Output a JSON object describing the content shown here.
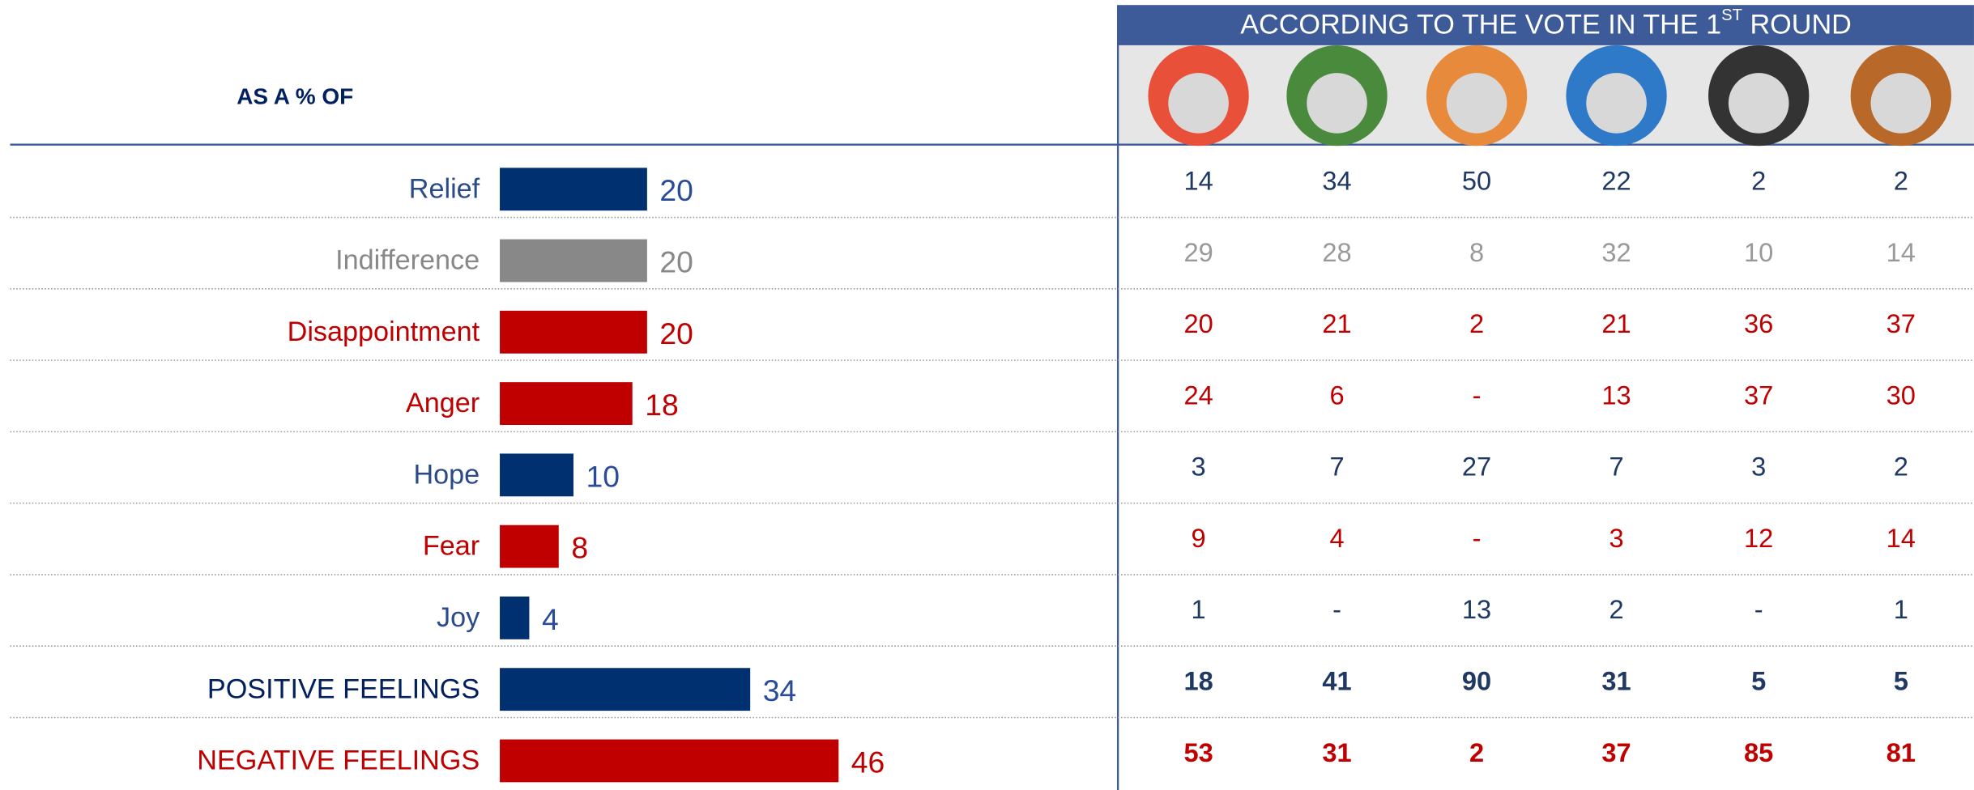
{
  "header": {
    "label": "AS A % OF",
    "title": "ACCORDING TO THE VOTE IN THE 1",
    "title_sup": "ST",
    "title_end": " ROUND"
  },
  "candidate_colors": [
    "#e8503a",
    "#4a8a3c",
    "#e88a3c",
    "#2f7ac8",
    "#333333",
    "#b8692a"
  ],
  "rows": [
    {
      "label": "Relief",
      "value": 20,
      "color": "#003070",
      "label_color": "#2a4a8a",
      "text_color": "#1f3864",
      "cols": [
        14,
        34,
        50,
        22,
        2,
        2
      ]
    },
    {
      "label": "Indifference",
      "value": 20,
      "color": "#888888",
      "label_color": "#888888",
      "text_color": "#999999",
      "cols": [
        29,
        28,
        8,
        32,
        10,
        14
      ]
    },
    {
      "label": "Disappointment",
      "value": 20,
      "color": "#c00000",
      "label_color": "#c00000",
      "text_color": "#c00000",
      "cols": [
        20,
        21,
        2,
        21,
        36,
        37
      ]
    },
    {
      "label": "Anger",
      "value": 18,
      "color": "#c00000",
      "label_color": "#c00000",
      "text_color": "#c00000",
      "cols": [
        24,
        6,
        "-",
        13,
        37,
        30
      ]
    },
    {
      "label": "Hope",
      "value": 10,
      "color": "#003070",
      "label_color": "#2a4a8a",
      "text_color": "#1f3864",
      "cols": [
        3,
        7,
        27,
        7,
        3,
        2
      ]
    },
    {
      "label": "Fear",
      "value": 8,
      "color": "#c00000",
      "label_color": "#c00000",
      "text_color": "#c00000",
      "cols": [
        9,
        4,
        "-",
        3,
        12,
        14
      ]
    },
    {
      "label": "Joy",
      "value": 4,
      "color": "#003070",
      "label_color": "#2a4a8a",
      "text_color": "#1f3864",
      "cols": [
        1,
        "-",
        13,
        2,
        "-",
        1
      ]
    },
    {
      "label": "POSITIVE FEELINGS",
      "value": 34,
      "color": "#003070",
      "label_color": "#002060",
      "text_color": "#1f3864",
      "bold": true,
      "cols": [
        18,
        41,
        90,
        31,
        5,
        5
      ]
    },
    {
      "label": "NEGATIVE FEELINGS",
      "value": 46,
      "color": "#c00000",
      "label_color": "#c00000",
      "text_color": "#c00000",
      "bold": true,
      "cols": [
        53,
        31,
        2,
        37,
        85,
        81
      ]
    }
  ]
}
